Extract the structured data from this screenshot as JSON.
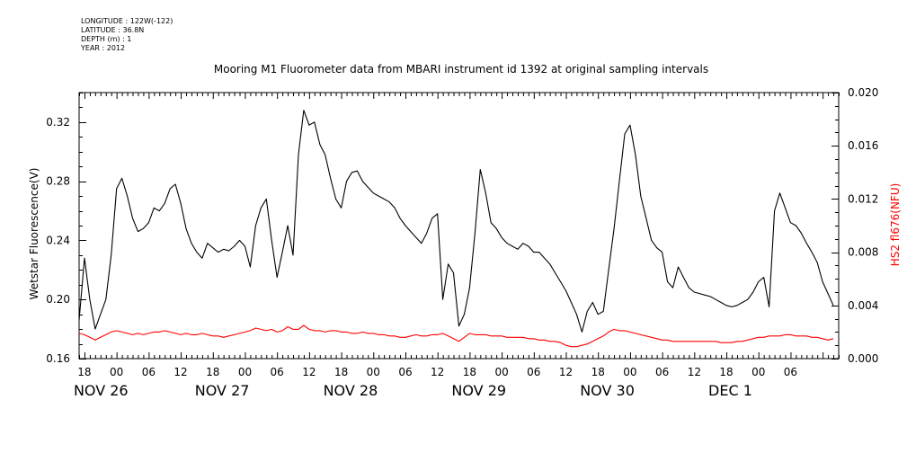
{
  "metadata": {
    "longitude": "LONGITUDE : 122W(-122)",
    "latitude": "LATITUDE : 36.8N",
    "depth": "DEPTH (m) : 1",
    "year": "YEAR : 2012"
  },
  "chart_data": {
    "type": "line",
    "title": "Mooring M1 Fluorometer data from MBARI instrument id 1392 at original sampling intervals",
    "ylabel": "Wetstar Fluorescence(V)",
    "ylabel_right": "HS2 fl676(NFU)",
    "ylim": [
      0.16,
      0.34
    ],
    "ylim_right": [
      0.0,
      0.02
    ],
    "yticks": [
      "0.16",
      "0.20",
      "0.24",
      "0.28",
      "0.32"
    ],
    "yticks_right": [
      "0.000",
      "0.004",
      "0.008",
      "0.012",
      "0.016",
      "0.020"
    ],
    "x_hours_tick_labels": [
      "18",
      "00",
      "06",
      "12",
      "18",
      "00",
      "06",
      "12",
      "18",
      "00",
      "06",
      "12",
      "18",
      "00",
      "06",
      "12",
      "18",
      "00",
      "06",
      "12",
      "18",
      "00",
      "06"
    ],
    "x_day_labels": [
      "NOV 26",
      "NOV 27",
      "NOV 28",
      "NOV 29",
      "NOV 30",
      "DEC  1"
    ],
    "grid": false,
    "colors": {
      "series1": "#000000",
      "series2": "#ff0000",
      "axis": "#000000"
    },
    "series": [
      {
        "name": "Wetstar Fluorescence(V)",
        "axis": "left",
        "x": [
          -7,
          -6,
          -5,
          -4,
          -3,
          -2,
          -1,
          0,
          1,
          2,
          3,
          4,
          5,
          6,
          7,
          8,
          9,
          10,
          11,
          12,
          13,
          14,
          15,
          16,
          17,
          18,
          19,
          20,
          21,
          22,
          23,
          24,
          25,
          26,
          27,
          28,
          29,
          30,
          31,
          32,
          33,
          34,
          35,
          36,
          37,
          38,
          39,
          40,
          41,
          42,
          43,
          44,
          45,
          46,
          47,
          48,
          49,
          50,
          51,
          52,
          53,
          54,
          55,
          56,
          57,
          58,
          59,
          60,
          61,
          62,
          63,
          64,
          65,
          66,
          67,
          68,
          69,
          70,
          71,
          72,
          73,
          74,
          75,
          76,
          77,
          78,
          79,
          80,
          81,
          82,
          83,
          84,
          85,
          86,
          87,
          88,
          89,
          90,
          91,
          92,
          93,
          94,
          95,
          96,
          97,
          98,
          99,
          100,
          101,
          102,
          103,
          104,
          105,
          106,
          107,
          108,
          109,
          110,
          111,
          112,
          113,
          114,
          115,
          116,
          117,
          118,
          119,
          120,
          121,
          122,
          123,
          124,
          125,
          126,
          127,
          128,
          129,
          130,
          131,
          132,
          133,
          134
        ],
        "y": [
          0.186,
          0.228,
          0.2,
          0.18,
          0.19,
          0.2,
          0.23,
          0.275,
          0.282,
          0.27,
          0.255,
          0.246,
          0.248,
          0.252,
          0.262,
          0.26,
          0.265,
          0.275,
          0.278,
          0.265,
          0.248,
          0.238,
          0.232,
          0.228,
          0.238,
          0.235,
          0.232,
          0.234,
          0.233,
          0.236,
          0.24,
          0.236,
          0.222,
          0.25,
          0.262,
          0.268,
          0.24,
          0.215,
          0.232,
          0.25,
          0.23,
          0.298,
          0.328,
          0.318,
          0.32,
          0.305,
          0.298,
          0.282,
          0.268,
          0.262,
          0.28,
          0.286,
          0.287,
          0.28,
          0.276,
          0.272,
          0.27,
          0.268,
          0.266,
          0.262,
          0.255,
          0.25,
          0.246,
          0.242,
          0.238,
          0.245,
          0.255,
          0.258,
          0.2,
          0.224,
          0.218,
          0.182,
          0.19,
          0.208,
          0.245,
          0.288,
          0.272,
          0.252,
          0.248,
          0.242,
          0.238,
          0.236,
          0.234,
          0.238,
          0.236,
          0.232,
          0.232,
          0.228,
          0.224,
          0.218,
          0.212,
          0.206,
          0.198,
          0.19,
          0.178,
          0.192,
          0.198,
          0.19,
          0.192,
          0.22,
          0.248,
          0.28,
          0.312,
          0.318,
          0.298,
          0.27,
          0.255,
          0.24,
          0.235,
          0.232,
          0.212,
          0.208,
          0.222,
          0.215,
          0.208,
          0.205,
          0.204,
          0.203,
          0.202,
          0.2,
          0.198,
          0.196,
          0.195,
          0.196,
          0.198,
          0.2,
          0.205,
          0.212,
          0.215,
          0.195,
          0.26,
          0.272,
          0.262,
          0.252,
          0.25,
          0.245,
          0.238,
          0.232,
          0.225,
          0.212,
          0.204,
          0.196
        ]
      },
      {
        "name": "HS2 fl676(NFU)",
        "axis": "right",
        "x": [
          -7,
          -6,
          -5,
          -4,
          -3,
          -2,
          -1,
          0,
          1,
          2,
          3,
          4,
          5,
          6,
          7,
          8,
          9,
          10,
          11,
          12,
          13,
          14,
          15,
          16,
          17,
          18,
          19,
          20,
          21,
          22,
          23,
          24,
          25,
          26,
          27,
          28,
          29,
          30,
          31,
          32,
          33,
          34,
          35,
          36,
          37,
          38,
          39,
          40,
          41,
          42,
          43,
          44,
          45,
          46,
          47,
          48,
          49,
          50,
          51,
          52,
          53,
          54,
          55,
          56,
          57,
          58,
          59,
          60,
          61,
          62,
          63,
          64,
          65,
          66,
          67,
          68,
          69,
          70,
          71,
          72,
          73,
          74,
          75,
          76,
          77,
          78,
          79,
          80,
          81,
          82,
          83,
          84,
          85,
          86,
          87,
          88,
          89,
          90,
          91,
          92,
          93,
          94,
          95,
          96,
          97,
          98,
          99,
          100,
          101,
          102,
          103,
          104,
          105,
          106,
          107,
          108,
          109,
          110,
          111,
          112,
          113,
          114,
          115,
          116,
          117,
          118,
          119,
          120,
          121,
          122,
          123,
          124,
          125,
          126,
          127,
          128,
          129,
          130,
          131,
          132,
          133,
          134
        ],
        "y": [
          0.0019,
          0.0018,
          0.0016,
          0.0014,
          0.0016,
          0.0018,
          0.002,
          0.0021,
          0.002,
          0.0019,
          0.0018,
          0.0019,
          0.0018,
          0.0019,
          0.002,
          0.002,
          0.0021,
          0.002,
          0.0019,
          0.0018,
          0.0019,
          0.0018,
          0.0018,
          0.0019,
          0.0018,
          0.0017,
          0.0017,
          0.0016,
          0.0017,
          0.0018,
          0.0019,
          0.002,
          0.0021,
          0.0023,
          0.0022,
          0.0021,
          0.0022,
          0.002,
          0.0021,
          0.0024,
          0.0022,
          0.0022,
          0.0025,
          0.0022,
          0.0021,
          0.0021,
          0.002,
          0.0021,
          0.0021,
          0.002,
          0.002,
          0.0019,
          0.0019,
          0.002,
          0.0019,
          0.0019,
          0.0018,
          0.0018,
          0.0017,
          0.0017,
          0.0016,
          0.0016,
          0.0017,
          0.0018,
          0.0017,
          0.0017,
          0.0018,
          0.0018,
          0.0019,
          0.0017,
          0.0015,
          0.0013,
          0.0016,
          0.0019,
          0.0018,
          0.0018,
          0.0018,
          0.0017,
          0.0017,
          0.0017,
          0.0016,
          0.0016,
          0.0016,
          0.0016,
          0.0015,
          0.0015,
          0.0014,
          0.0014,
          0.0013,
          0.0013,
          0.0012,
          0.001,
          0.0009,
          0.0009,
          0.001,
          0.0011,
          0.0013,
          0.0015,
          0.0017,
          0.002,
          0.0022,
          0.0021,
          0.0021,
          0.002,
          0.0019,
          0.0018,
          0.0017,
          0.0016,
          0.0015,
          0.0014,
          0.0014,
          0.0013,
          0.0013,
          0.0013,
          0.0013,
          0.0013,
          0.0013,
          0.0013,
          0.0013,
          0.0013,
          0.0012,
          0.0012,
          0.0012,
          0.0013,
          0.0013,
          0.0014,
          0.0015,
          0.0016,
          0.0016,
          0.0017,
          0.0017,
          0.0017,
          0.0018,
          0.0018,
          0.0017,
          0.0017,
          0.0017,
          0.0016,
          0.0016,
          0.0015,
          0.0014,
          0.0015
        ]
      }
    ]
  }
}
